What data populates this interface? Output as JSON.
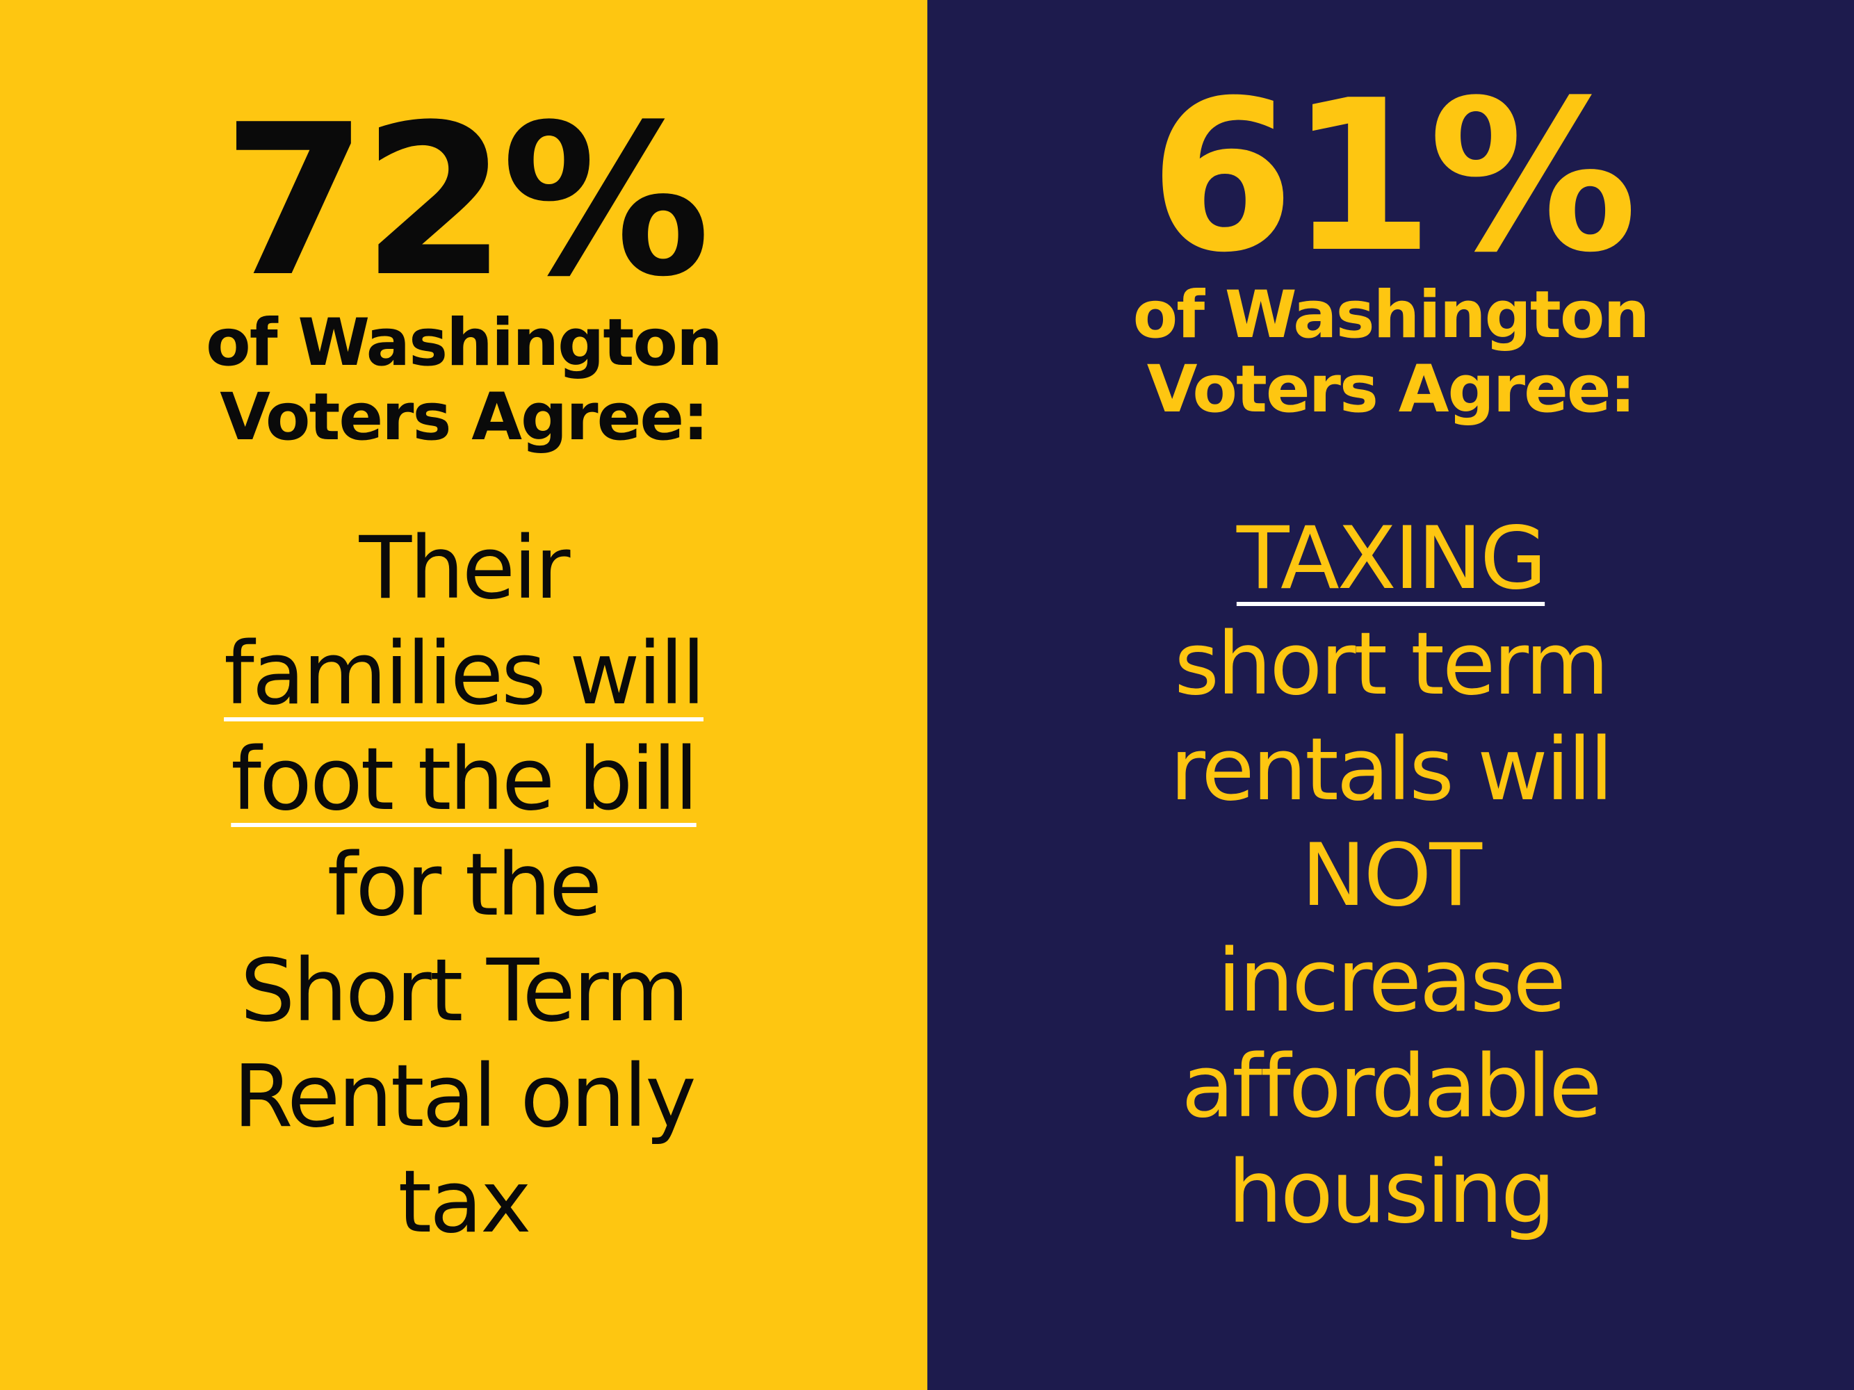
{
  "colors": {
    "yellow": "#FEC611",
    "navy": "#1D1B4D",
    "black": "#0A0A0A",
    "underline": "#FFFFFF"
  },
  "left": {
    "percent": "72%",
    "subtitle_line1": "of Washington",
    "subtitle_line2": "Voters Agree:",
    "lines": [
      "Their",
      "families will",
      "foot the bill",
      "for the",
      "Short Term",
      "Rental only",
      "tax"
    ]
  },
  "right": {
    "percent": "61%",
    "subtitle_line1": "of Washington",
    "subtitle_line2": "Voters Agree:",
    "lines": [
      "TAXING",
      "short term",
      "rentals will",
      "NOT",
      "increase",
      "affordable",
      "housing"
    ]
  }
}
